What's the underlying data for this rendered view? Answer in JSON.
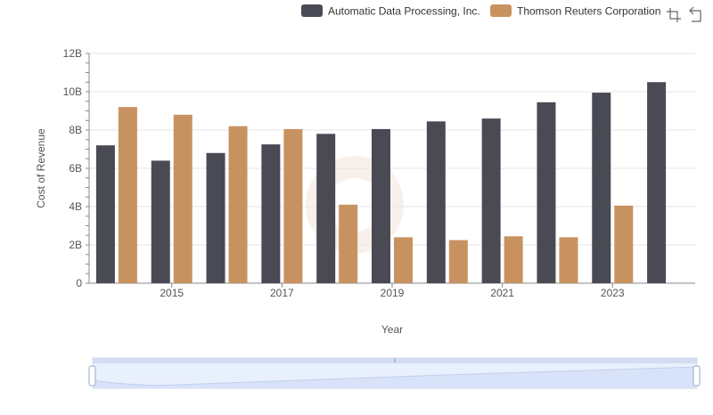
{
  "chart_data": {
    "type": "bar",
    "title": "",
    "xlabel": "Year",
    "ylabel": "Cost of Revenue",
    "categories": [
      "2014",
      "2015",
      "2016",
      "2017",
      "2018",
      "2019",
      "2020",
      "2021",
      "2022",
      "2023",
      "2024"
    ],
    "x_tick_labels": [
      "2015",
      "2017",
      "2019",
      "2021",
      "2023"
    ],
    "y_ticks": [
      0,
      2000000000,
      4000000000,
      6000000000,
      8000000000,
      10000000000,
      12000000000
    ],
    "y_tick_labels": [
      "0",
      "2B",
      "4B",
      "6B",
      "8B",
      "10B",
      "12B"
    ],
    "ylim": [
      0,
      12000000000
    ],
    "grid": true,
    "legend_position": "top-right",
    "series": [
      {
        "name": "Automatic Data Processing, Inc.",
        "color": "#4a4a55",
        "values": [
          7200000000,
          6400000000,
          6800000000,
          7250000000,
          7800000000,
          8050000000,
          8450000000,
          8600000000,
          9450000000,
          9950000000,
          10500000000
        ]
      },
      {
        "name": "Thomson Reuters Corporation",
        "color": "#c89260",
        "values": [
          9200000000,
          8800000000,
          8200000000,
          8050000000,
          4100000000,
          2400000000,
          2250000000,
          2450000000,
          2400000000,
          4050000000,
          null
        ]
      }
    ]
  },
  "toolbox": {
    "zoom_icon": "zoom-in-icon",
    "reset_icon": "zoom-reset-icon"
  },
  "datazoom": {
    "handle_grip": "⫴"
  }
}
